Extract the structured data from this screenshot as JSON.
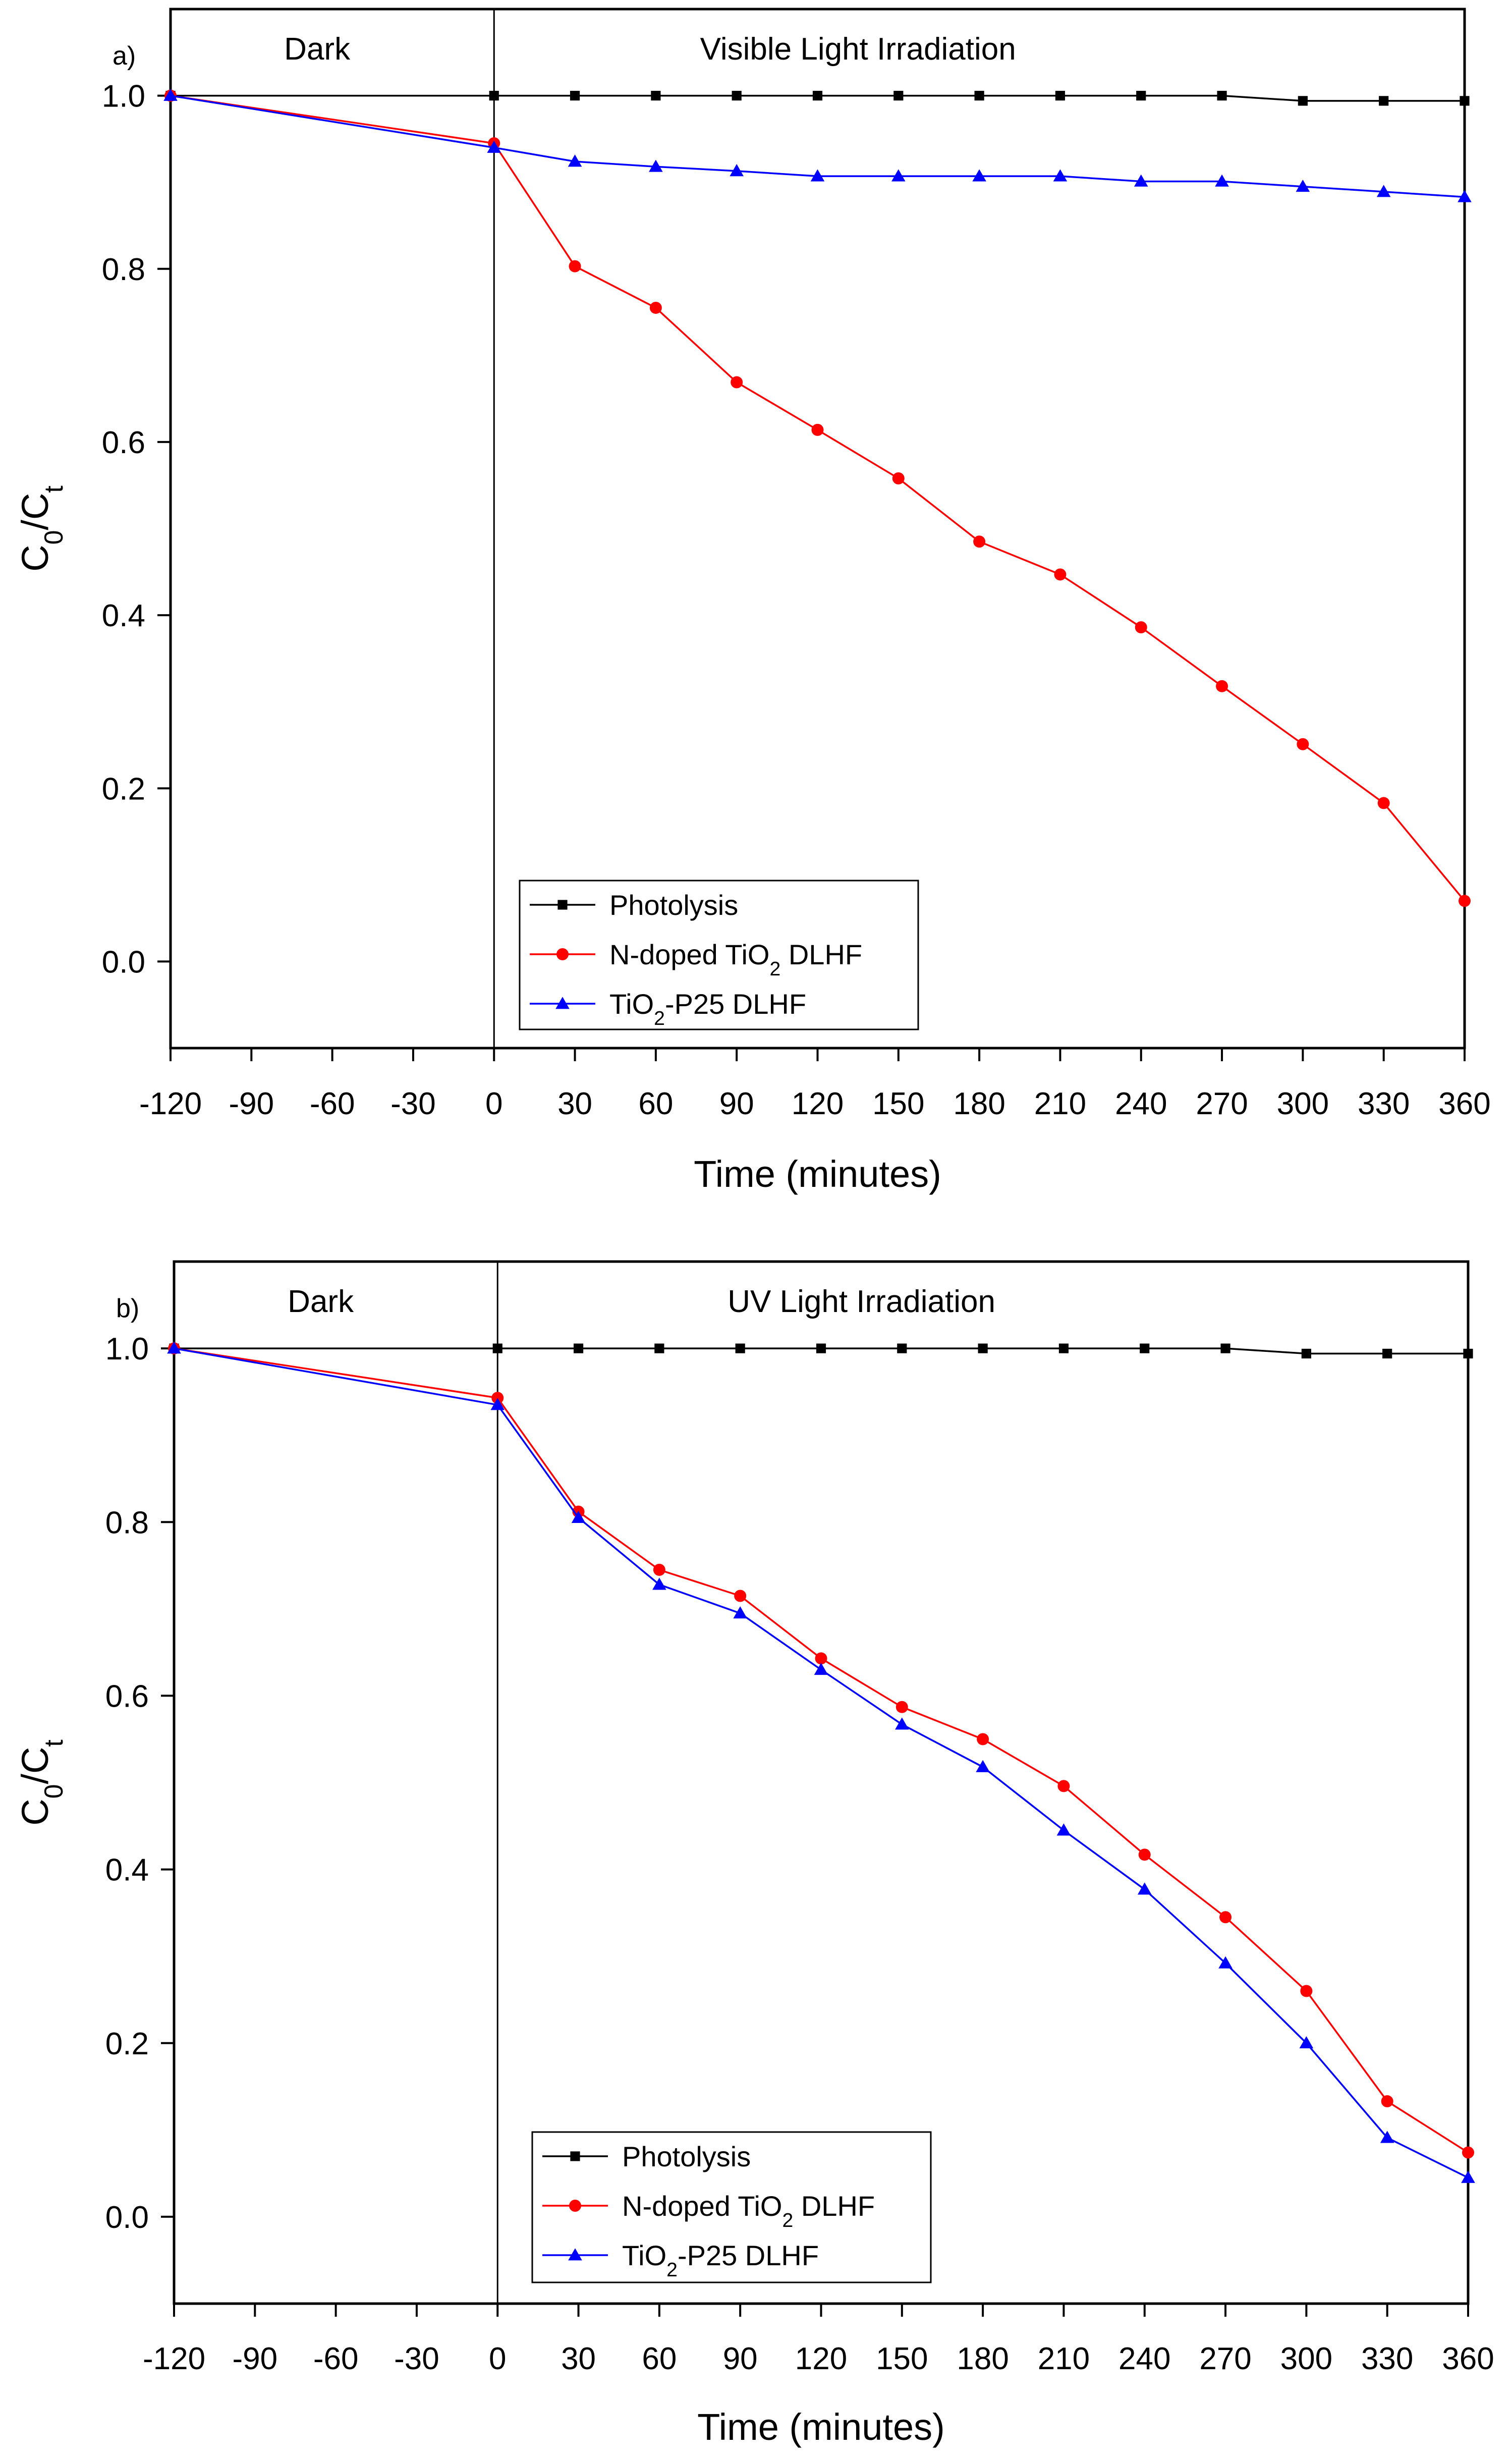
{
  "chart_data": [
    {
      "type": "line",
      "panel_label": "a)",
      "regions": {
        "dark": "Dark",
        "light": "Visible Light Irradiation"
      },
      "xlabel": "Time (minutes)",
      "ylabel": {
        "main": "C",
        "sub1": "0",
        "slash": "/C",
        "sub2": "t"
      },
      "x_ticks": [
        -120,
        -90,
        -60,
        -30,
        0,
        30,
        60,
        90,
        120,
        150,
        180,
        210,
        240,
        270,
        300,
        330,
        360
      ],
      "x_tick_labels": [
        "-120",
        "-90",
        "-60",
        "-30",
        "0",
        "30",
        "60",
        "90",
        "120",
        "150",
        "180",
        "210",
        "240",
        "270",
        "300",
        "330",
        "360"
      ],
      "y_ticks": [
        0.0,
        0.2,
        0.4,
        0.6,
        0.8,
        1.0
      ],
      "y_tick_labels": [
        "0.0",
        "0.2",
        "0.4",
        "0.6",
        "0.8",
        "1.0"
      ],
      "ylim": [
        -0.1,
        1.1
      ],
      "x": [
        -120,
        0,
        30,
        60,
        90,
        120,
        150,
        180,
        210,
        240,
        270,
        300,
        330,
        360
      ],
      "legend_position": "bottom-left",
      "series": [
        {
          "name": "Photolysis",
          "color": "#000000",
          "marker": "square",
          "legend": {
            "pre": "Photolysis",
            "sub": "",
            "post": ""
          },
          "values": [
            1.0,
            1.0,
            1.0,
            1.0,
            1.0,
            1.0,
            1.0,
            1.0,
            1.0,
            1.0,
            1.0,
            0.994,
            0.994,
            0.994
          ]
        },
        {
          "name": "N-doped TiO2 DLHF",
          "color": "#ff0000",
          "marker": "circle",
          "legend": {
            "pre": "N-doped TiO",
            "sub": "2",
            "post": " DLHF"
          },
          "values": [
            1.0,
            0.945,
            0.803,
            0.755,
            0.669,
            0.614,
            0.558,
            0.485,
            0.447,
            0.386,
            0.318,
            0.251,
            0.183,
            0.07
          ]
        },
        {
          "name": "TiO2-P25 DLHF",
          "color": "#0000ff",
          "marker": "triangle",
          "legend": {
            "pre": "TiO",
            "sub": "2",
            "post": "-P25 DLHF"
          },
          "values": [
            1.0,
            0.94,
            0.924,
            0.918,
            0.913,
            0.907,
            0.907,
            0.907,
            0.907,
            0.901,
            0.901,
            0.895,
            0.889,
            0.883
          ]
        }
      ]
    },
    {
      "type": "line",
      "panel_label": "b)",
      "regions": {
        "dark": "Dark",
        "light": "UV Light Irradiation"
      },
      "xlabel": "Time (minutes)",
      "ylabel": {
        "main": "C",
        "sub1": "0",
        "slash": "/C",
        "sub2": "t"
      },
      "x_ticks": [
        -120,
        -90,
        -60,
        -30,
        0,
        30,
        60,
        90,
        120,
        150,
        180,
        210,
        240,
        270,
        300,
        330,
        360
      ],
      "x_tick_labels": [
        "-120",
        "-90",
        "-60",
        "-30",
        "0",
        "30",
        "60",
        "90",
        "120",
        "150",
        "180",
        "210",
        "240",
        "270",
        "300",
        "330",
        "360"
      ],
      "y_ticks": [
        0.0,
        0.2,
        0.4,
        0.6,
        0.8,
        1.0
      ],
      "y_tick_labels": [
        "0.0",
        "0.2",
        "0.4",
        "0.6",
        "0.8",
        "1.0"
      ],
      "ylim": [
        -0.1,
        1.1
      ],
      "x": [
        -120,
        0,
        30,
        60,
        90,
        120,
        150,
        180,
        210,
        240,
        270,
        300,
        330,
        360
      ],
      "legend_position": "bottom-left",
      "series": [
        {
          "name": "Photolysis",
          "color": "#000000",
          "marker": "square",
          "legend": {
            "pre": "Photolysis",
            "sub": "",
            "post": ""
          },
          "values": [
            1.0,
            1.0,
            1.0,
            1.0,
            1.0,
            1.0,
            1.0,
            1.0,
            1.0,
            1.0,
            1.0,
            0.994,
            0.994,
            0.994
          ]
        },
        {
          "name": "N-doped TiO2 DLHF",
          "color": "#ff0000",
          "marker": "circle",
          "legend": {
            "pre": "N-doped TiO",
            "sub": "2",
            "post": " DLHF"
          },
          "values": [
            1.0,
            0.943,
            0.812,
            0.745,
            0.715,
            0.643,
            0.587,
            0.55,
            0.496,
            0.417,
            0.345,
            0.26,
            0.133,
            0.074
          ]
        },
        {
          "name": "TiO2-P25 DLHF",
          "color": "#0000ff",
          "marker": "triangle",
          "legend": {
            "pre": "TiO",
            "sub": "2",
            "post": "-P25 DLHF"
          },
          "values": [
            1.0,
            0.935,
            0.805,
            0.728,
            0.695,
            0.63,
            0.567,
            0.518,
            0.445,
            0.377,
            0.292,
            0.2,
            0.091,
            0.045
          ]
        }
      ]
    }
  ]
}
